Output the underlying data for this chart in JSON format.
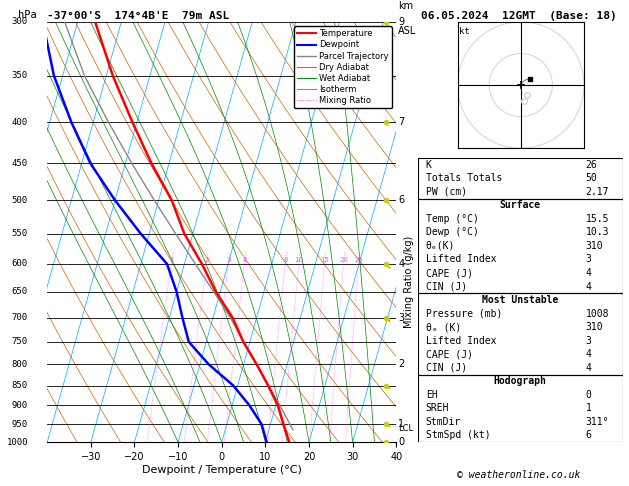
{
  "title_left": "-37°00'S  174°4B'E  79m ASL",
  "title_right": "06.05.2024  12GMT  (Base: 18)",
  "xlabel": "Dewpoint / Temperature (°C)",
  "temp_color": "#ff0000",
  "dewpoint_color": "#0000ff",
  "parcel_color": "#888888",
  "dry_adiabat_color": "#cc6600",
  "wet_adiabat_color": "#008800",
  "isotherm_color": "#00aaff",
  "mixing_ratio_color": "#ff44ff",
  "temperature_profile": {
    "pressure": [
      1000,
      950,
      900,
      850,
      800,
      750,
      700,
      650,
      600,
      550,
      500,
      450,
      400,
      350,
      300
    ],
    "temp": [
      15.5,
      13.0,
      10.5,
      7.0,
      3.0,
      -1.5,
      -5.5,
      -11.0,
      -16.0,
      -22.0,
      -27.0,
      -34.0,
      -41.0,
      -48.5,
      -56.0
    ]
  },
  "dewpoint_profile": {
    "pressure": [
      1000,
      950,
      900,
      850,
      800,
      750,
      700,
      650,
      600,
      550,
      500,
      450,
      400,
      350,
      300
    ],
    "dewp": [
      10.3,
      8.0,
      4.0,
      -1.0,
      -8.0,
      -14.0,
      -17.0,
      -20.0,
      -24.0,
      -32.0,
      -40.0,
      -48.0,
      -55.0,
      -62.0,
      -68.0
    ]
  },
  "parcel_profile": {
    "pressure": [
      965,
      950,
      900,
      850,
      800,
      750,
      700,
      650,
      600,
      550,
      500,
      450,
      400,
      350,
      300
    ],
    "temp": [
      15.5,
      14.5,
      11.0,
      7.0,
      3.0,
      -1.5,
      -6.0,
      -11.5,
      -17.5,
      -24.0,
      -31.0,
      -38.5,
      -46.5,
      -55.0,
      -63.0
    ]
  },
  "lcl_pressure": 962,
  "mixing_ratio_values": [
    1,
    2,
    3,
    4,
    8,
    10,
    15,
    20,
    25
  ],
  "info_box": {
    "K": 26,
    "Totals_Totals": 50,
    "PW_cm": 2.17,
    "Surface": {
      "Temp_C": 15.5,
      "Dewp_C": 10.3,
      "theta_e_K": 310,
      "Lifted_Index": 3,
      "CAPE_J": 4,
      "CIN_J": 4
    },
    "Most_Unstable": {
      "Pressure_mb": 1008,
      "theta_e_K": 310,
      "Lifted_Index": 3,
      "CAPE_J": 4,
      "CIN_J": 4
    },
    "Hodograph": {
      "EH": 0,
      "SREH": 1,
      "StmDir": "311°",
      "StmSpd_kt": 6
    }
  }
}
